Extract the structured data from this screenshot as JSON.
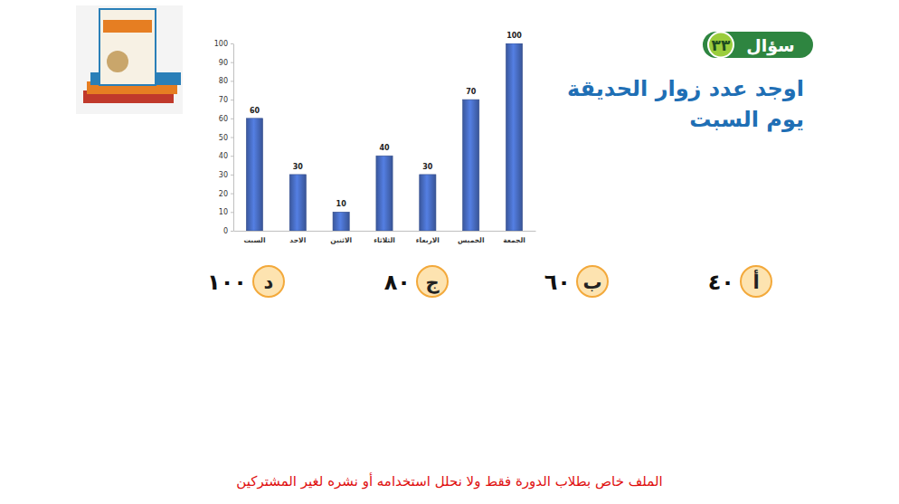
{
  "chart_data": {
    "type": "bar",
    "categories": [
      "السبت",
      "الاحد",
      "الاثنين",
      "الثلاثاء",
      "الاربعاء",
      "الخميس",
      "الجمعة"
    ],
    "values": [
      60,
      30,
      10,
      40,
      30,
      70,
      100
    ],
    "color": "#4a70c8",
    "ylim": [
      0,
      100
    ],
    "yticks": [
      0,
      10,
      20,
      30,
      40,
      50,
      60,
      70,
      80,
      90,
      100
    ],
    "grid": false,
    "data_labels": true
  },
  "question": {
    "label": "سؤال",
    "number": "٣٣",
    "text_lines": [
      "اوجد عدد زوار الحديقة",
      "يوم السبت"
    ]
  },
  "options": [
    {
      "letter": "أ",
      "text": "٤٠"
    },
    {
      "letter": "ب",
      "text": "٦٠"
    },
    {
      "letter": "ج",
      "text": "٨٠"
    },
    {
      "letter": "د",
      "text": "١٠٠"
    }
  ],
  "footer": "الملف خاص بطلاب الدورة فقط ولا نحلل استخدامه أو نشره لغير المشتركين"
}
